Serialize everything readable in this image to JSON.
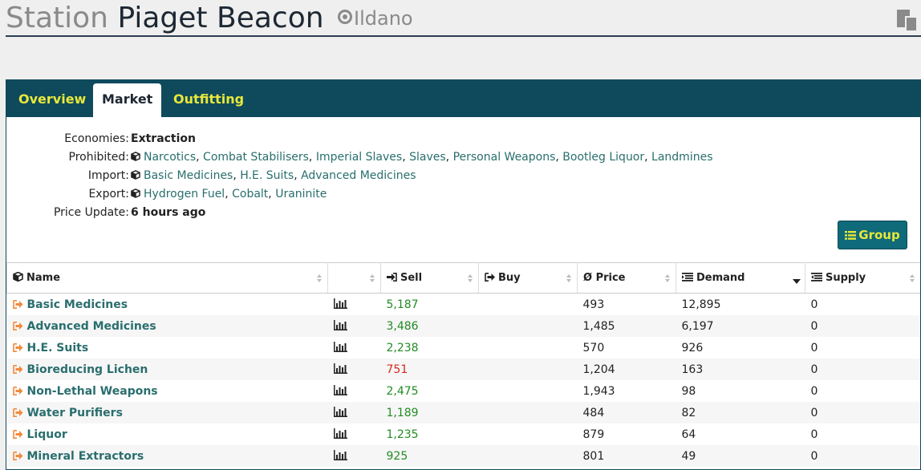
{
  "header": {
    "prefix": "Station",
    "station_name": "Piaget Beacon",
    "system": "Ildano",
    "copy_icon": "copy-icon"
  },
  "tabs": [
    {
      "label": "Overview",
      "active": false
    },
    {
      "label": "Market",
      "active": true
    },
    {
      "label": "Outfitting",
      "active": false
    }
  ],
  "info": {
    "economies": {
      "label": "Economies:",
      "value": "Extraction"
    },
    "prohibited": {
      "label": "Prohibited:",
      "items": [
        "Narcotics",
        "Combat Stabilisers",
        "Imperial Slaves",
        "Slaves",
        "Personal Weapons",
        "Bootleg Liquor",
        "Landmines"
      ]
    },
    "import": {
      "label": "Import:",
      "items": [
        "Basic Medicines",
        "H.E. Suits",
        "Advanced Medicines"
      ]
    },
    "export": {
      "label": "Export:",
      "items": [
        "Hydrogen Fuel",
        "Cobalt",
        "Uraninite"
      ]
    },
    "price_update": {
      "label": "Price Update:",
      "value": "6 hours ago"
    }
  },
  "group_button": {
    "label": "Group"
  },
  "table": {
    "columns": {
      "name": "Name",
      "chart": "",
      "sell": "Sell",
      "buy": "Buy",
      "avg_price": "Ø Price",
      "demand": "Demand",
      "supply": "Supply"
    },
    "sorted_column": "demand",
    "rows": [
      {
        "name": "Basic Medicines",
        "sell": "5,187",
        "sell_status": "good",
        "buy": "",
        "avg": "493",
        "demand": "12,895",
        "supply": "0"
      },
      {
        "name": "Advanced Medicines",
        "sell": "3,486",
        "sell_status": "good",
        "buy": "",
        "avg": "1,485",
        "demand": "6,197",
        "supply": "0"
      },
      {
        "name": "H.E. Suits",
        "sell": "2,238",
        "sell_status": "good",
        "buy": "",
        "avg": "570",
        "demand": "926",
        "supply": "0"
      },
      {
        "name": "Bioreducing Lichen",
        "sell": "751",
        "sell_status": "bad",
        "buy": "",
        "avg": "1,204",
        "demand": "163",
        "supply": "0"
      },
      {
        "name": "Non-Lethal Weapons",
        "sell": "2,475",
        "sell_status": "good",
        "buy": "",
        "avg": "1,943",
        "demand": "98",
        "supply": "0"
      },
      {
        "name": "Water Purifiers",
        "sell": "1,189",
        "sell_status": "good",
        "buy": "",
        "avg": "484",
        "demand": "82",
        "supply": "0"
      },
      {
        "name": "Liquor",
        "sell": "1,235",
        "sell_status": "good",
        "buy": "",
        "avg": "879",
        "demand": "64",
        "supply": "0"
      },
      {
        "name": "Mineral Extractors",
        "sell": "925",
        "sell_status": "good",
        "buy": "",
        "avg": "801",
        "demand": "49",
        "supply": "0"
      }
    ]
  },
  "colors": {
    "tab_bar": "#0f4a5c",
    "tab_text": "#e8e83a",
    "link": "#2a6e6e",
    "sell_good": "#228b22",
    "sell_bad": "#d9261c",
    "goto_icon": "#f08a3c"
  }
}
